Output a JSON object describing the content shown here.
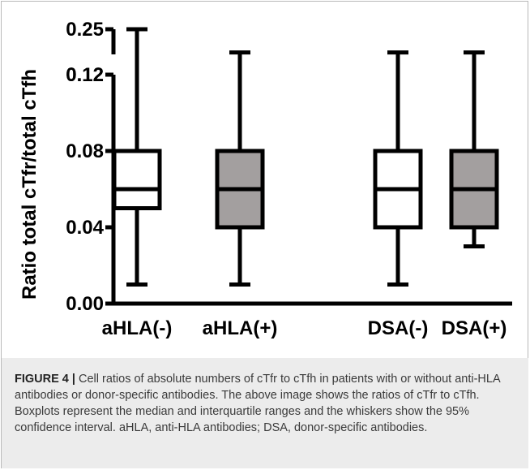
{
  "chart_data": {
    "type": "boxplot",
    "title": "",
    "xlabel": "",
    "ylabel": "Ratio total cTfr/total cTfh",
    "categories": [
      "aHLA(-)",
      "aHLA(+)",
      "DSA(-)",
      "DSA(+)"
    ],
    "fill_colors": [
      "#ffffff",
      "#a39f9f",
      "#ffffff",
      "#a39f9f"
    ],
    "boxes": [
      {
        "category": "aHLA(-)",
        "whisker_low": 0.01,
        "q1": 0.05,
        "median": 0.06,
        "q3": 0.08,
        "whisker_high": 0.25
      },
      {
        "category": "aHLA(+)",
        "whisker_low": 0.01,
        "q1": 0.04,
        "median": 0.06,
        "q3": 0.08,
        "whisker_high": 0.13
      },
      {
        "category": "DSA(-)",
        "whisker_low": 0.01,
        "q1": 0.04,
        "median": 0.06,
        "q3": 0.08,
        "whisker_high": 0.13
      },
      {
        "category": "DSA(+)",
        "whisker_low": 0.03,
        "q1": 0.04,
        "median": 0.06,
        "q3": 0.08,
        "whisker_high": 0.13
      }
    ],
    "y_axis": {
      "broken": true,
      "lower_segment": {
        "range": [
          0.0,
          0.12
        ],
        "ticks": [
          "0.00",
          "0.04",
          "0.08",
          "0.12"
        ]
      },
      "upper_segment": {
        "range": [
          0.12,
          0.25
        ],
        "ticks": [
          "0.12",
          "0.25"
        ]
      }
    },
    "grid": false,
    "legend": "none"
  },
  "caption": {
    "label": "FIGURE 4 |",
    "text": " Cell ratios of absolute numbers of cTfr to cTfh in patients with or without anti-HLA antibodies or donor-specific antibodies. The above image shows the ratios of cTfr to cTfh. Boxplots represent the median and interquartile ranges and the whiskers show the 95% confidence interval. aHLA, anti-HLA antibodies; DSA, donor-specific antibodies."
  }
}
